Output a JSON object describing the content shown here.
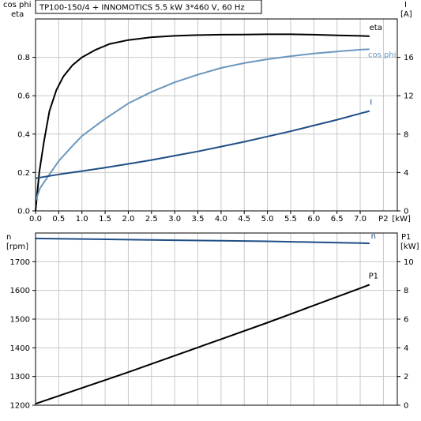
{
  "header": {
    "title": "TP100-150/4 + INNOMOTICS   5.5 kW   3*460 V, 60 Hz"
  },
  "chart_data": [
    {
      "type": "line",
      "title": "TP100-150/4 + INNOMOTICS   5.5 kW   3*460 V, 60 Hz",
      "xlabel": "P2 [kW]",
      "x_unit": "[kW]",
      "x_name": "P2",
      "xlim": [
        0,
        7.8
      ],
      "x_ticks": [
        "0.0",
        "0.5",
        "1.0",
        "1.5",
        "2.0",
        "2.5",
        "3.0",
        "3.5",
        "4.0",
        "4.5",
        "5.0",
        "5.5",
        "6.0",
        "6.5",
        "7.0"
      ],
      "y_left_label_lines": [
        "cos phi",
        "eta"
      ],
      "ylim_left": [
        0,
        1
      ],
      "y_left_ticks": [
        "0.0",
        "0.2",
        "0.4",
        "0.6",
        "0.8"
      ],
      "y_right_label_lines": [
        "I",
        "[A]"
      ],
      "ylim_right": [
        0,
        20
      ],
      "y_right_ticks": [
        "0",
        "4",
        "8",
        "12",
        "16"
      ],
      "grid": true,
      "series": [
        {
          "name": "eta",
          "axis": "left",
          "color": "#000000",
          "points": [
            [
              0,
              0.0
            ],
            [
              0.08,
              0.2
            ],
            [
              0.18,
              0.36
            ],
            [
              0.3,
              0.52
            ],
            [
              0.45,
              0.63
            ],
            [
              0.6,
              0.7
            ],
            [
              0.8,
              0.76
            ],
            [
              1.0,
              0.8
            ],
            [
              1.3,
              0.84
            ],
            [
              1.6,
              0.87
            ],
            [
              2.0,
              0.89
            ],
            [
              2.5,
              0.905
            ],
            [
              3.0,
              0.912
            ],
            [
              3.5,
              0.916
            ],
            [
              4.0,
              0.918
            ],
            [
              4.5,
              0.919
            ],
            [
              5.0,
              0.92
            ],
            [
              5.5,
              0.92
            ],
            [
              6.0,
              0.918
            ],
            [
              6.5,
              0.915
            ],
            [
              7.0,
              0.912
            ],
            [
              7.2,
              0.91
            ]
          ]
        },
        {
          "name": "cos phi",
          "axis": "left",
          "color": "#6b97be",
          "points": [
            [
              0,
              0.05
            ],
            [
              0.1,
              0.12
            ],
            [
              0.3,
              0.19
            ],
            [
              0.5,
              0.26
            ],
            [
              0.8,
              0.34
            ],
            [
              1.0,
              0.39
            ],
            [
              1.5,
              0.48
            ],
            [
              2.0,
              0.56
            ],
            [
              2.5,
              0.62
            ],
            [
              3.0,
              0.67
            ],
            [
              3.5,
              0.71
            ],
            [
              4.0,
              0.745
            ],
            [
              4.5,
              0.77
            ],
            [
              5.0,
              0.79
            ],
            [
              5.5,
              0.806
            ],
            [
              6.0,
              0.82
            ],
            [
              6.5,
              0.83
            ],
            [
              7.0,
              0.84
            ],
            [
              7.2,
              0.842
            ]
          ]
        },
        {
          "name": "I",
          "axis": "right",
          "color": "#1f4e86",
          "points": [
            [
              0,
              3.4
            ],
            [
              0.5,
              3.8
            ],
            [
              1.0,
              4.15
            ],
            [
              1.5,
              4.5
            ],
            [
              2.0,
              4.9
            ],
            [
              2.5,
              5.3
            ],
            [
              3.0,
              5.75
            ],
            [
              3.5,
              6.2
            ],
            [
              4.0,
              6.7
            ],
            [
              4.5,
              7.2
            ],
            [
              5.0,
              7.75
            ],
            [
              5.5,
              8.3
            ],
            [
              6.0,
              8.9
            ],
            [
              6.5,
              9.5
            ],
            [
              7.0,
              10.15
            ],
            [
              7.2,
              10.4
            ]
          ]
        }
      ]
    },
    {
      "type": "line",
      "xlim": [
        0,
        7.8
      ],
      "y_left_label_lines": [
        "n",
        "[rpm]"
      ],
      "ylim_left": [
        1200,
        1800
      ],
      "y_left_ticks": [
        "1200",
        "1300",
        "1400",
        "1500",
        "1600",
        "1700"
      ],
      "y_right_label_lines": [
        "P1",
        "[kW]"
      ],
      "ylim_right": [
        0,
        12
      ],
      "y_right_ticks": [
        "0",
        "2",
        "4",
        "6",
        "8",
        "10"
      ],
      "grid": true,
      "series": [
        {
          "name": "n",
          "axis": "left",
          "color": "#1f4e86",
          "points": [
            [
              0,
              1781
            ],
            [
              1.0,
              1779
            ],
            [
              2.0,
              1777
            ],
            [
              3.0,
              1775
            ],
            [
              4.0,
              1773
            ],
            [
              5.0,
              1771
            ],
            [
              6.0,
              1768
            ],
            [
              7.0,
              1765
            ],
            [
              7.2,
              1764
            ]
          ]
        },
        {
          "name": "P1",
          "axis": "right",
          "color": "#000000",
          "points": [
            [
              0,
              0.1
            ],
            [
              1.0,
              1.2
            ],
            [
              2.0,
              2.3
            ],
            [
              3.0,
              3.45
            ],
            [
              4.0,
              4.6
            ],
            [
              5.0,
              5.75
            ],
            [
              6.0,
              6.95
            ],
            [
              7.0,
              8.15
            ],
            [
              7.2,
              8.4
            ]
          ]
        }
      ]
    }
  ]
}
